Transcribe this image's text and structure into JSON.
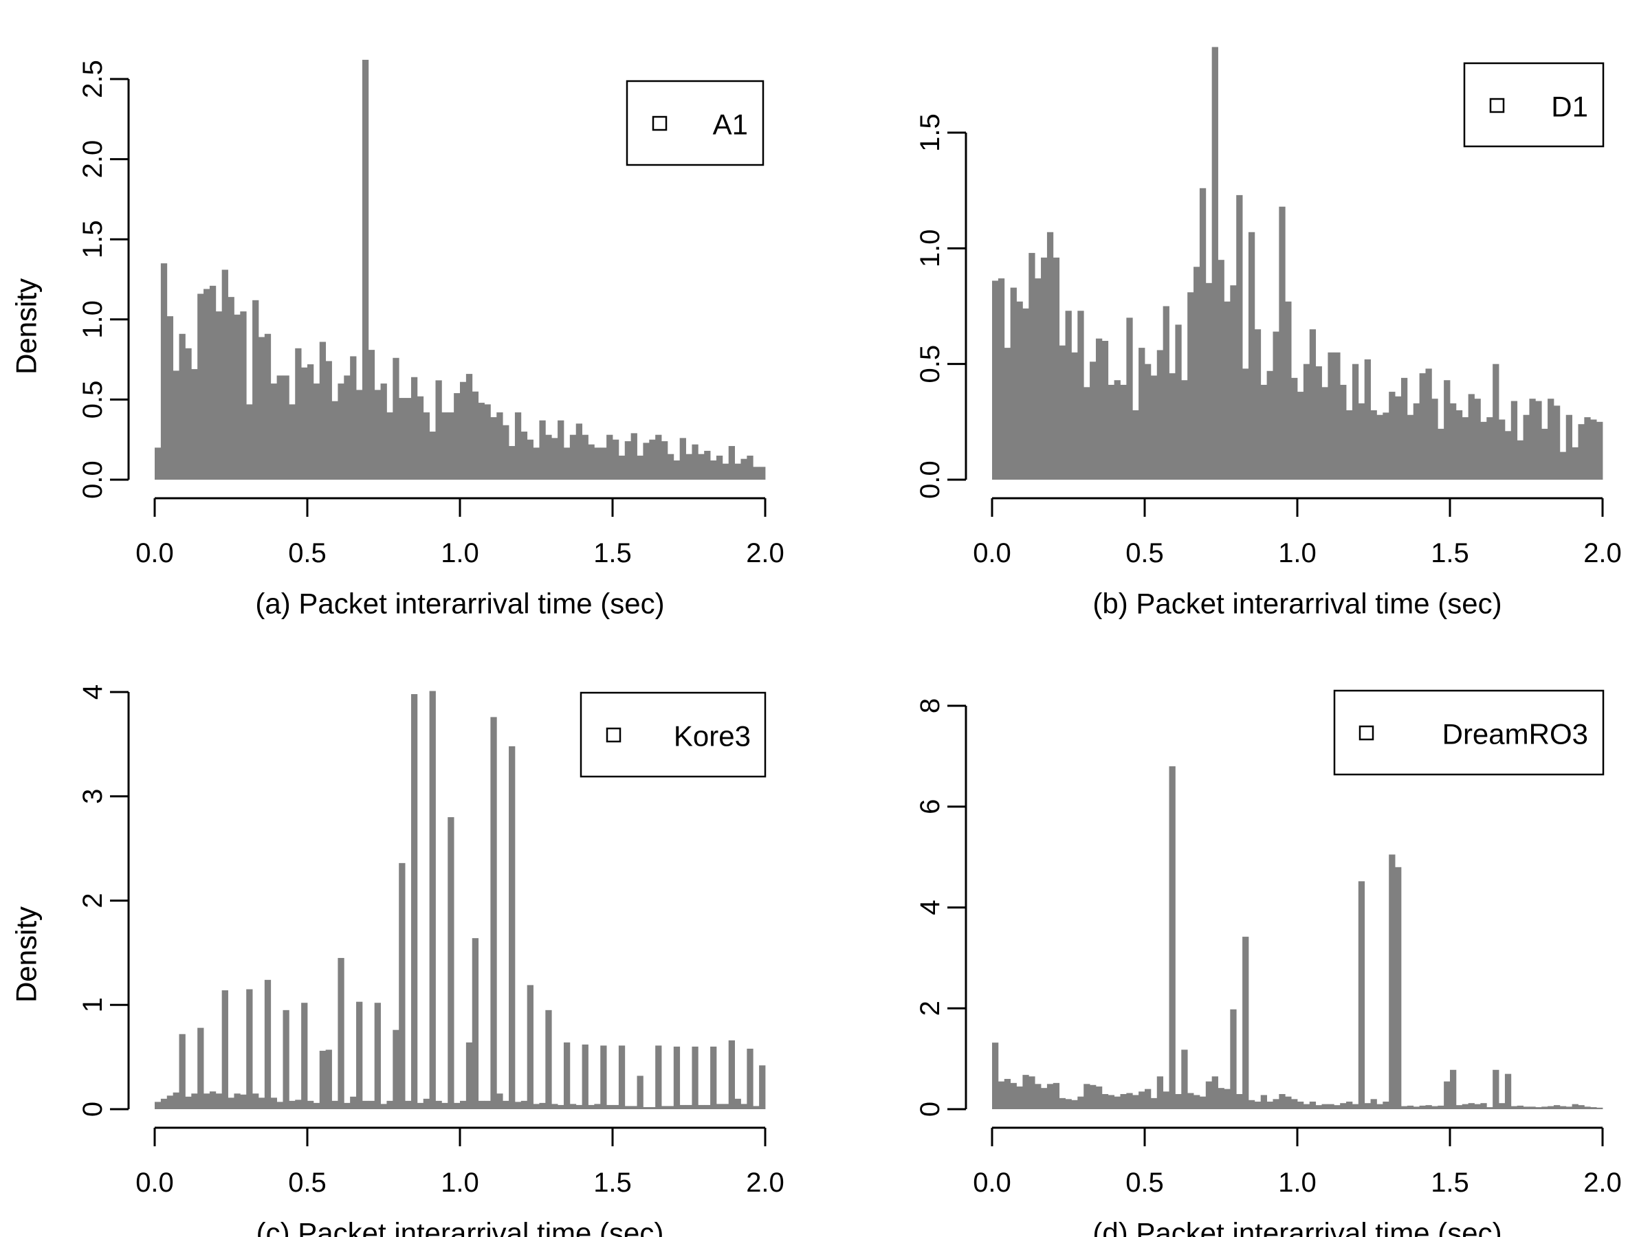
{
  "colors": {
    "bar": "#808080",
    "axis": "#000000",
    "background": "#ffffff"
  },
  "chart_data": [
    {
      "type": "bar",
      "panel": "a",
      "xlabel": "(a) Packet interarrival time (sec)",
      "ylabel": "Density",
      "legend": {
        "label": "A1",
        "marker": "open-square",
        "position": "top-right"
      },
      "xlim": [
        0,
        2
      ],
      "ylim": [
        0,
        2.5
      ],
      "xticks": [
        "0.0",
        "0.5",
        "1.0",
        "1.5",
        "2.0"
      ],
      "yticks": [
        "0.0",
        "0.5",
        "1.0",
        "1.5",
        "2.0",
        "2.5"
      ],
      "bin_width": 0.02,
      "values": [
        0.2,
        1.35,
        1.02,
        0.68,
        0.91,
        0.82,
        0.69,
        1.16,
        1.19,
        1.21,
        1.05,
        1.31,
        1.14,
        1.03,
        1.05,
        0.47,
        1.12,
        0.89,
        0.91,
        0.6,
        0.65,
        0.65,
        0.47,
        0.82,
        0.7,
        0.72,
        0.6,
        0.86,
        0.74,
        0.49,
        0.6,
        0.65,
        0.77,
        0.56,
        2.62,
        0.81,
        0.56,
        0.6,
        0.42,
        0.76,
        0.51,
        0.51,
        0.64,
        0.52,
        0.42,
        0.3,
        0.62,
        0.42,
        0.42,
        0.54,
        0.61,
        0.66,
        0.55,
        0.48,
        0.47,
        0.39,
        0.42,
        0.34,
        0.21,
        0.42,
        0.3,
        0.25,
        0.2,
        0.37,
        0.28,
        0.26,
        0.37,
        0.2,
        0.28,
        0.35,
        0.28,
        0.22,
        0.2,
        0.2,
        0.28,
        0.25,
        0.15,
        0.24,
        0.29,
        0.15,
        0.23,
        0.25,
        0.28,
        0.24,
        0.16,
        0.12,
        0.26,
        0.16,
        0.22,
        0.16,
        0.18,
        0.12,
        0.15,
        0.1,
        0.21,
        0.1,
        0.13,
        0.15,
        0.08,
        0.08
      ]
    },
    {
      "type": "bar",
      "panel": "b",
      "xlabel": "(b) Packet interarrival time (sec)",
      "ylabel": "Density",
      "legend": {
        "label": "D1",
        "marker": "open-square",
        "position": "top-right"
      },
      "xlim": [
        0,
        2
      ],
      "ylim": [
        0,
        1.5
      ],
      "xticks": [
        "0.0",
        "0.5",
        "1.0",
        "1.5",
        "2.0"
      ],
      "yticks": [
        "0.0",
        "0.5",
        "1.0",
        "1.5"
      ],
      "bin_width": 0.02,
      "values": [
        0.86,
        0.87,
        0.57,
        0.83,
        0.77,
        0.74,
        0.98,
        0.87,
        0.96,
        1.07,
        0.96,
        0.58,
        0.73,
        0.55,
        0.73,
        0.4,
        0.51,
        0.61,
        0.6,
        0.41,
        0.43,
        0.41,
        0.7,
        0.3,
        0.57,
        0.5,
        0.45,
        0.56,
        0.75,
        0.46,
        0.67,
        0.43,
        0.81,
        0.92,
        1.26,
        0.85,
        1.87,
        0.95,
        0.77,
        0.84,
        1.23,
        0.48,
        1.07,
        0.65,
        0.41,
        0.47,
        0.64,
        1.18,
        0.77,
        0.44,
        0.38,
        0.5,
        0.65,
        0.49,
        0.4,
        0.55,
        0.55,
        0.41,
        0.3,
        0.5,
        0.33,
        0.52,
        0.3,
        0.28,
        0.29,
        0.38,
        0.36,
        0.44,
        0.28,
        0.33,
        0.46,
        0.48,
        0.35,
        0.22,
        0.43,
        0.33,
        0.3,
        0.27,
        0.37,
        0.35,
        0.25,
        0.27,
        0.5,
        0.26,
        0.21,
        0.34,
        0.17,
        0.28,
        0.35,
        0.34,
        0.22,
        0.35,
        0.32,
        0.12,
        0.28,
        0.14,
        0.24,
        0.27,
        0.26,
        0.25
      ]
    },
    {
      "type": "bar",
      "panel": "c",
      "xlabel": "(c) Packet interarrival time (sec)",
      "ylabel": "Density",
      "legend": {
        "label": "Kore3",
        "marker": "open-square",
        "position": "top-right"
      },
      "xlim": [
        0,
        2
      ],
      "ylim": [
        0,
        4
      ],
      "xticks": [
        "0.0",
        "0.5",
        "1.0",
        "1.5",
        "2.0"
      ],
      "yticks": [
        "0",
        "1",
        "2",
        "3",
        "4"
      ],
      "bin_width": 0.02,
      "values": [
        0.07,
        0.1,
        0.13,
        0.16,
        0.72,
        0.12,
        0.15,
        0.78,
        0.15,
        0.17,
        0.15,
        1.14,
        0.11,
        0.15,
        0.14,
        1.15,
        0.15,
        0.11,
        1.24,
        0.11,
        0.07,
        0.95,
        0.08,
        0.09,
        1.02,
        0.08,
        0.06,
        0.56,
        0.57,
        0.08,
        1.45,
        0.06,
        0.12,
        1.03,
        0.08,
        0.08,
        1.02,
        0.05,
        0.08,
        0.76,
        2.36,
        0.08,
        3.98,
        0.06,
        0.1,
        4.01,
        0.08,
        0.06,
        2.8,
        0.06,
        0.08,
        0.64,
        1.64,
        0.08,
        0.08,
        3.76,
        0.15,
        0.08,
        3.48,
        0.07,
        0.08,
        1.19,
        0.05,
        0.06,
        0.95,
        0.05,
        0.04,
        0.64,
        0.05,
        0.04,
        0.62,
        0.04,
        0.05,
        0.61,
        0.04,
        0.04,
        0.61,
        0.03,
        0.03,
        0.32,
        0.02,
        0.02,
        0.61,
        0.03,
        0.03,
        0.6,
        0.04,
        0.04,
        0.6,
        0.04,
        0.04,
        0.6,
        0.05,
        0.05,
        0.66,
        0.1,
        0.05,
        0.58,
        0.03,
        0.42
      ]
    },
    {
      "type": "bar",
      "panel": "d",
      "xlabel": "(d) Packet interarrival time (sec)",
      "ylabel": "Density",
      "legend": {
        "label": "DreamRO3",
        "marker": "open-square",
        "position": "top-right"
      },
      "xlim": [
        0,
        2
      ],
      "ylim": [
        0,
        8
      ],
      "xticks": [
        "0.0",
        "0.5",
        "1.0",
        "1.5",
        "2.0"
      ],
      "yticks": [
        "0",
        "2",
        "4",
        "6",
        "8"
      ],
      "bin_width": 0.02,
      "values": [
        1.32,
        0.55,
        0.6,
        0.52,
        0.45,
        0.68,
        0.65,
        0.5,
        0.42,
        0.5,
        0.52,
        0.22,
        0.2,
        0.18,
        0.25,
        0.5,
        0.48,
        0.45,
        0.3,
        0.28,
        0.25,
        0.3,
        0.32,
        0.28,
        0.35,
        0.4,
        0.22,
        0.65,
        0.35,
        6.8,
        0.3,
        1.18,
        0.32,
        0.28,
        0.25,
        0.55,
        0.65,
        0.42,
        0.4,
        1.98,
        0.3,
        3.42,
        0.18,
        0.15,
        0.28,
        0.15,
        0.2,
        0.3,
        0.25,
        0.2,
        0.15,
        0.1,
        0.15,
        0.08,
        0.1,
        0.1,
        0.08,
        0.12,
        0.15,
        0.1,
        4.52,
        0.12,
        0.2,
        0.1,
        0.15,
        5.05,
        4.8,
        0.06,
        0.07,
        0.05,
        0.07,
        0.08,
        0.06,
        0.07,
        0.55,
        0.78,
        0.08,
        0.1,
        0.12,
        0.1,
        0.12,
        0.04,
        0.78,
        0.12,
        0.7,
        0.06,
        0.07,
        0.05,
        0.05,
        0.04,
        0.05,
        0.06,
        0.08,
        0.06,
        0.05,
        0.1,
        0.08,
        0.05,
        0.04,
        0.03
      ]
    }
  ]
}
